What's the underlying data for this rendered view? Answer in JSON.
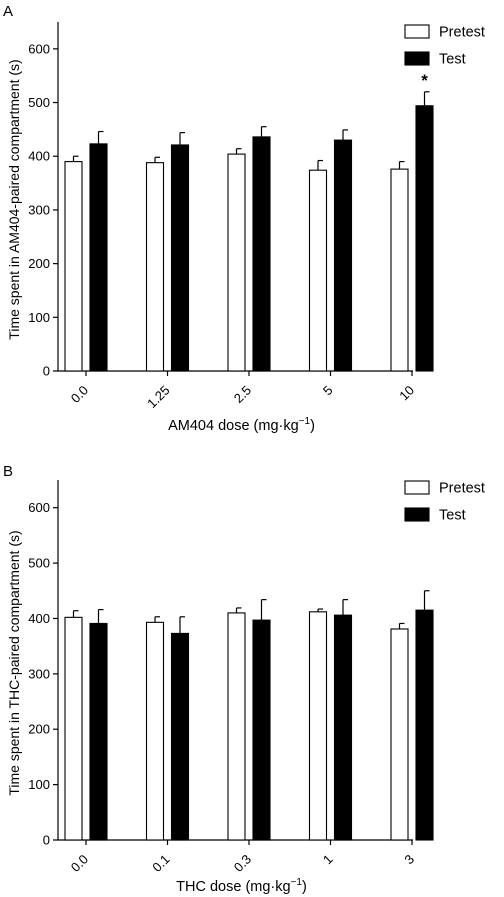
{
  "chart_data": [
    {
      "panel_label": "A",
      "type": "bar",
      "categories": [
        "0.0",
        "1.25",
        "2.5",
        "5",
        "10"
      ],
      "series": [
        {
          "name": "Pretest",
          "values": [
            390,
            388,
            404,
            374,
            376
          ],
          "errors": [
            10,
            10,
            10,
            18,
            14
          ],
          "fill": "#ffffff"
        },
        {
          "name": "Test",
          "values": [
            423,
            421,
            436,
            430,
            494
          ],
          "errors": [
            23,
            23,
            19,
            19,
            26
          ],
          "fill": "#000000"
        }
      ],
      "ylabel": "Time spent in AM404-paired compartment (s)",
      "xlabel": "AM404 dose (mg·kg",
      "xlabel_sup": "−1",
      "xlabel_close": ")",
      "ylim": [
        0,
        650
      ],
      "yticks": [
        0,
        100,
        200,
        300,
        400,
        500,
        600
      ],
      "legend_position": "top-right",
      "annotations": [
        {
          "category": "10",
          "series": "Test",
          "text": "*"
        }
      ]
    },
    {
      "panel_label": "B",
      "type": "bar",
      "categories": [
        "0.0",
        "0.1",
        "0.3",
        "1",
        "3"
      ],
      "series": [
        {
          "name": "Pretest",
          "values": [
            402,
            393,
            410,
            412,
            381
          ],
          "errors": [
            12,
            10,
            9,
            5,
            10
          ],
          "fill": "#ffffff"
        },
        {
          "name": "Test",
          "values": [
            391,
            373,
            397,
            406,
            415
          ],
          "errors": [
            25,
            30,
            37,
            28,
            35
          ],
          "fill": "#000000"
        }
      ],
      "ylabel": "Time spent in THC-paired compartment (s)",
      "xlabel": "THC dose (mg·kg",
      "xlabel_sup": "−1",
      "xlabel_close": ")",
      "ylim": [
        0,
        650
      ],
      "yticks": [
        0,
        100,
        200,
        300,
        400,
        500,
        600
      ],
      "legend_position": "top-right",
      "annotations": []
    }
  ]
}
